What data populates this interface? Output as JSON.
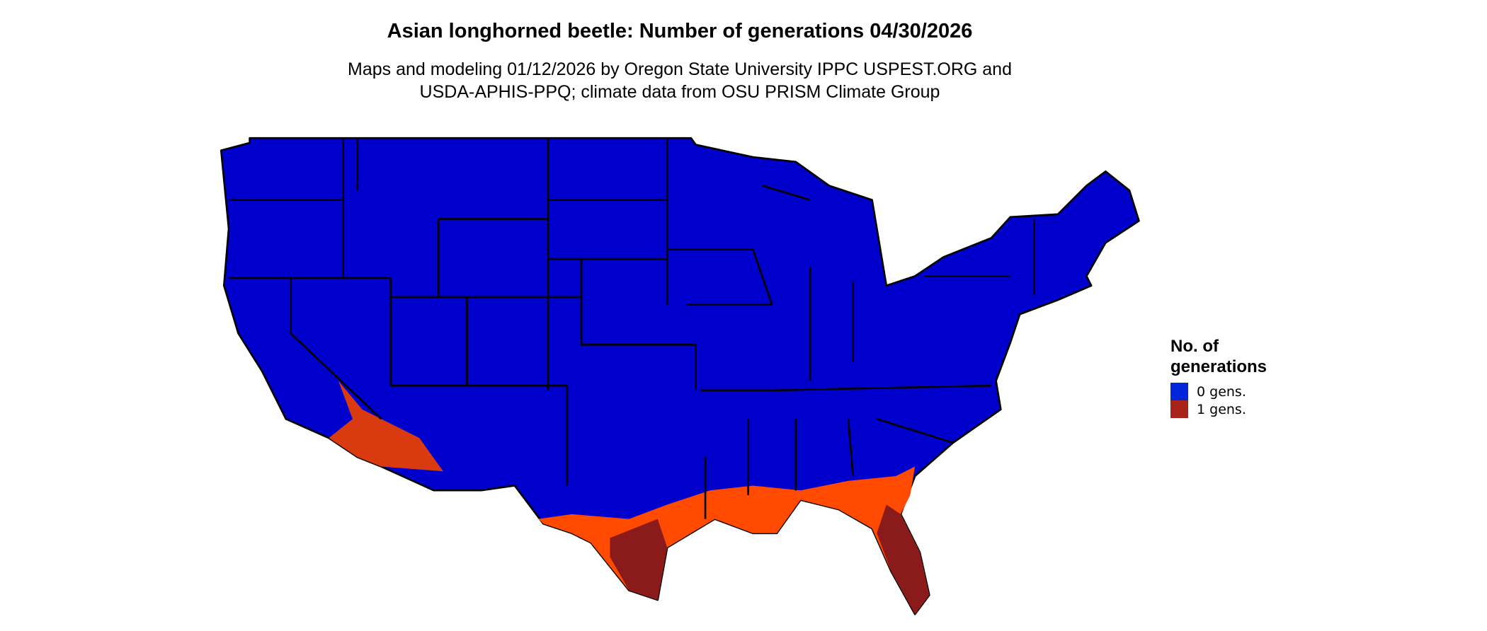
{
  "title": "Asian longhorned beetle: Number of generations 04/30/2026",
  "subtitle_line1": "Maps and modeling 01/12/2026 by Oregon State University IPPC USPEST.ORG and",
  "subtitle_line2": "USDA-APHIS-PPQ; climate data from OSU PRISM Climate Group",
  "legend": {
    "title_line1": "No. of",
    "title_line2": "generations",
    "items": [
      {
        "label": "0 gens.",
        "color": "#0026d9"
      },
      {
        "label": "1 gens.",
        "color": "#a8231a"
      }
    ]
  },
  "map_colors": {
    "zero_gens": "#0000cc",
    "low_one_gen": "#ff4a00",
    "mid_one_gen": "#d93a10",
    "high_one_gen": "#8b1a1a",
    "borders": "#000000"
  }
}
